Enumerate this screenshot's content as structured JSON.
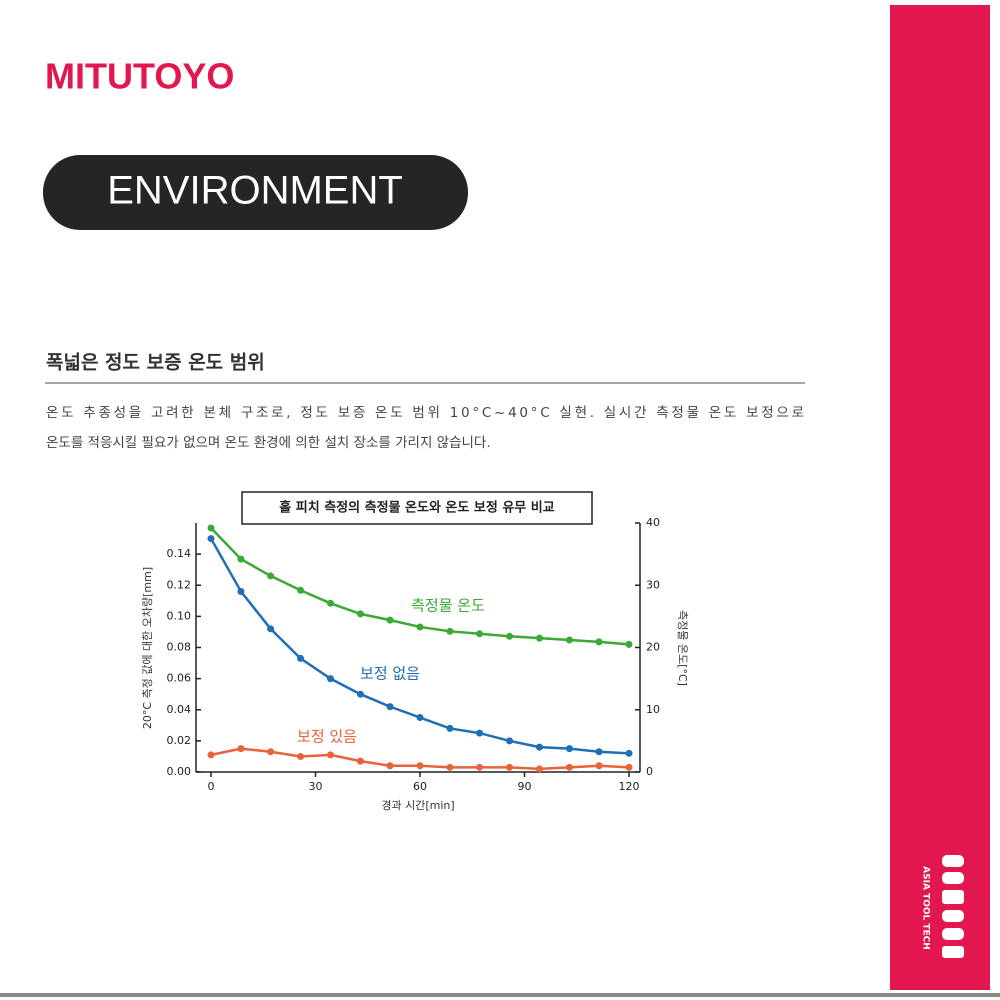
{
  "brand": "MITUTOYO",
  "badge": "ENVIRONMENT",
  "heading": "폭넓은 정도 보증 온도 범위",
  "paragraph": [
    "온도 추종성을 고려한 본체 구조로, 정도 보증 온도 범위 10°C~40°C 실현. 실시간 측정물 온도 보정으로",
    "온도를 적응시킬 필요가 없으며 온도 환경에 의한 설치 장소를 가리지 않습니다."
  ],
  "sidebar_logo": "ASIA TOOL TECH",
  "chart_data": {
    "type": "line",
    "title": "홀 피치 측정의 측정물 온도와 온도 보정 유무 비교",
    "x_label": "경과 시간[min]",
    "y_label": "20°C 측정 값에 대한 오차량[mm]",
    "y2_label": "측정물 온도[°C]",
    "x": [
      0,
      8.6,
      17.1,
      25.7,
      34.3,
      42.9,
      51.4,
      60,
      68.6,
      77.1,
      85.7,
      94.3,
      102.9,
      111.4,
      120
    ],
    "xlim": [
      0,
      120
    ],
    "xticks": [
      0,
      30,
      60,
      90,
      120
    ],
    "ylim": [
      0,
      0.16
    ],
    "yticks": [
      {
        "value": 0,
        "label": "0.00"
      },
      0.02,
      0.04,
      0.06,
      0.08,
      {
        "value": 0.1,
        "label": "0.10"
      },
      0.12,
      0.14
    ],
    "y2lim": [
      0,
      40
    ],
    "y2ticks": [
      0,
      10,
      20,
      30,
      40
    ],
    "series": [
      {
        "name": "측정물 온도",
        "color": "#3aa935",
        "axis": "y2",
        "values": [
          39.2,
          34.2,
          31.5,
          29.2,
          27.1,
          25.4,
          24.4,
          23.3,
          22.6,
          22.2,
          21.8,
          21.5,
          21.2,
          20.9,
          20.5
        ]
      },
      {
        "name": "보정 없음",
        "color": "#1f6fb5",
        "values": [
          0.15,
          0.116,
          0.092,
          0.073,
          0.06,
          0.05,
          0.042,
          0.035,
          0.028,
          0.025,
          0.02,
          0.016,
          0.015,
          0.013,
          0.012
        ]
      },
      {
        "name": "보정 있음",
        "color": "#e8623a",
        "values": [
          0.011,
          0.015,
          0.013,
          0.01,
          0.011,
          0.007,
          0.004,
          0.004,
          0.003,
          0.003,
          0.003,
          0.002,
          0.003,
          0.004,
          0.003
        ]
      }
    ]
  }
}
